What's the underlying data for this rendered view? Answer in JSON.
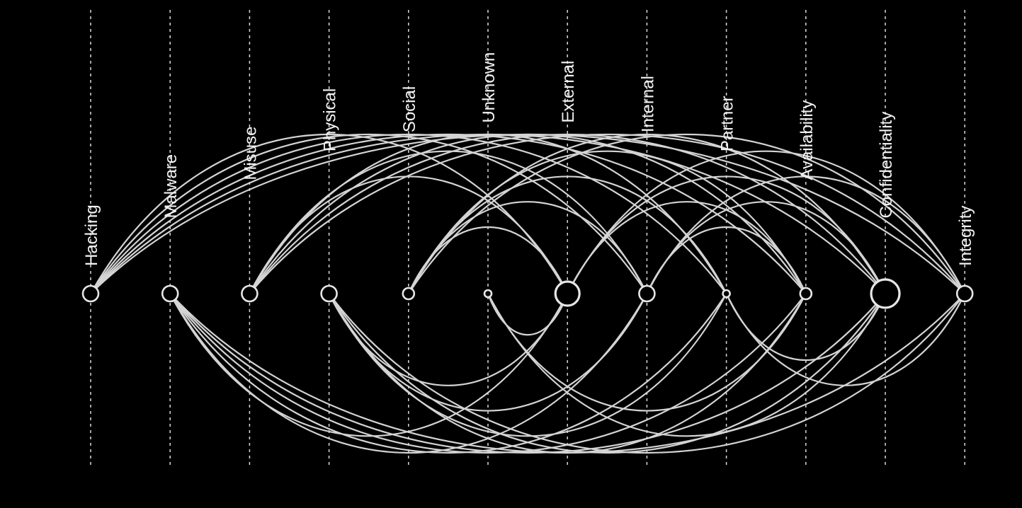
{
  "colors": {
    "background": "#000000",
    "line": "#d4d4d4",
    "node_stroke": "#e6e6e6",
    "label": "#f2f2f2"
  },
  "nodes": [
    {
      "id": "hacking",
      "label": "Hacking",
      "weight": 3
    },
    {
      "id": "malware",
      "label": "Malware",
      "weight": 3
    },
    {
      "id": "misuse",
      "label": "Misuse",
      "weight": 3
    },
    {
      "id": "physical",
      "label": "Physical",
      "weight": 3
    },
    {
      "id": "social",
      "label": "Social",
      "weight": 2
    },
    {
      "id": "unknown",
      "label": "Unknown",
      "weight": 1
    },
    {
      "id": "external",
      "label": "External",
      "weight": 5
    },
    {
      "id": "internal",
      "label": "Internal",
      "weight": 3
    },
    {
      "id": "partner",
      "label": "Partner",
      "weight": 1
    },
    {
      "id": "availability",
      "label": "Availability",
      "weight": 2
    },
    {
      "id": "confidentiality",
      "label": "Confidentiality",
      "weight": 6
    },
    {
      "id": "integrity",
      "label": "Integrity",
      "weight": 3
    }
  ],
  "edges": [
    [
      "hacking",
      "external"
    ],
    [
      "hacking",
      "internal"
    ],
    [
      "hacking",
      "partner"
    ],
    [
      "hacking",
      "availability"
    ],
    [
      "hacking",
      "confidentiality"
    ],
    [
      "hacking",
      "integrity"
    ],
    [
      "malware",
      "external"
    ],
    [
      "malware",
      "internal"
    ],
    [
      "malware",
      "partner"
    ],
    [
      "malware",
      "availability"
    ],
    [
      "malware",
      "confidentiality"
    ],
    [
      "malware",
      "integrity"
    ],
    [
      "misuse",
      "external"
    ],
    [
      "misuse",
      "internal"
    ],
    [
      "misuse",
      "partner"
    ],
    [
      "misuse",
      "availability"
    ],
    [
      "misuse",
      "confidentiality"
    ],
    [
      "misuse",
      "integrity"
    ],
    [
      "physical",
      "external"
    ],
    [
      "physical",
      "internal"
    ],
    [
      "physical",
      "partner"
    ],
    [
      "physical",
      "availability"
    ],
    [
      "physical",
      "confidentiality"
    ],
    [
      "physical",
      "integrity"
    ],
    [
      "social",
      "external"
    ],
    [
      "social",
      "internal"
    ],
    [
      "social",
      "partner"
    ],
    [
      "social",
      "availability"
    ],
    [
      "social",
      "confidentiality"
    ],
    [
      "social",
      "integrity"
    ],
    [
      "unknown",
      "external"
    ],
    [
      "unknown",
      "availability"
    ],
    [
      "unknown",
      "confidentiality"
    ],
    [
      "external",
      "availability"
    ],
    [
      "external",
      "confidentiality"
    ],
    [
      "external",
      "integrity"
    ],
    [
      "internal",
      "availability"
    ],
    [
      "internal",
      "confidentiality"
    ],
    [
      "internal",
      "integrity"
    ],
    [
      "partner",
      "confidentiality"
    ],
    [
      "partner",
      "integrity"
    ]
  ]
}
